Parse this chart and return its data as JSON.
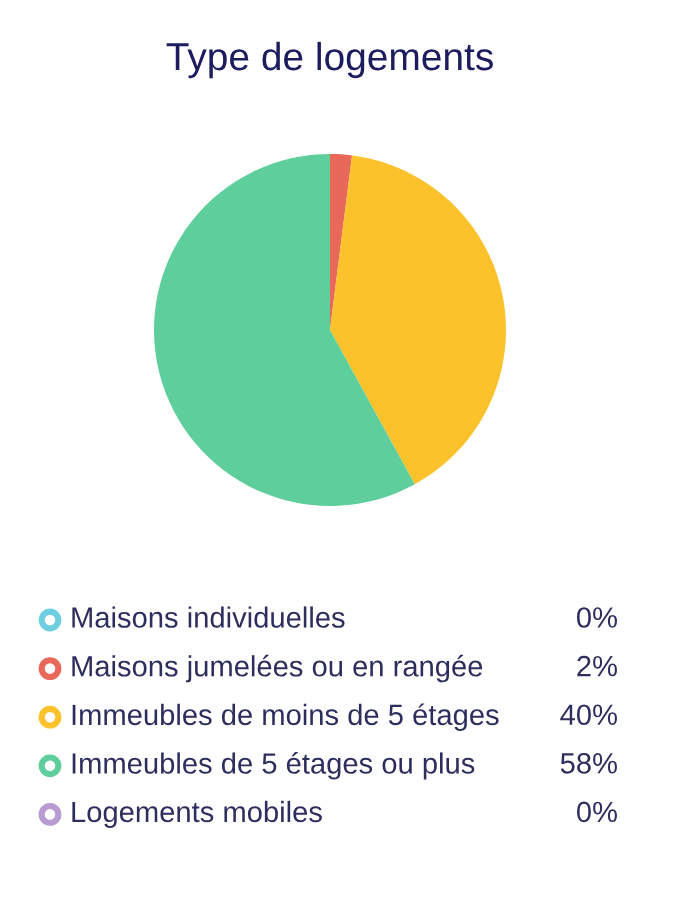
{
  "chart_data": {
    "type": "pie",
    "title": "Type de logements",
    "categories": [
      "Maisons individuelles",
      "Maisons jumelées ou en rangée",
      "Immeubles de moins de 5 étages",
      "Immeubles de 5 étages ou plus",
      "Logements mobiles"
    ],
    "values": [
      0,
      2,
      40,
      58,
      0
    ],
    "colors": [
      "#6dcfe0",
      "#e8685a",
      "#fcc22b",
      "#5ecf9c",
      "#b89bd0"
    ],
    "value_labels": [
      "0%",
      "2%",
      "40%",
      "58%",
      "0%"
    ],
    "legend": "bottom"
  }
}
